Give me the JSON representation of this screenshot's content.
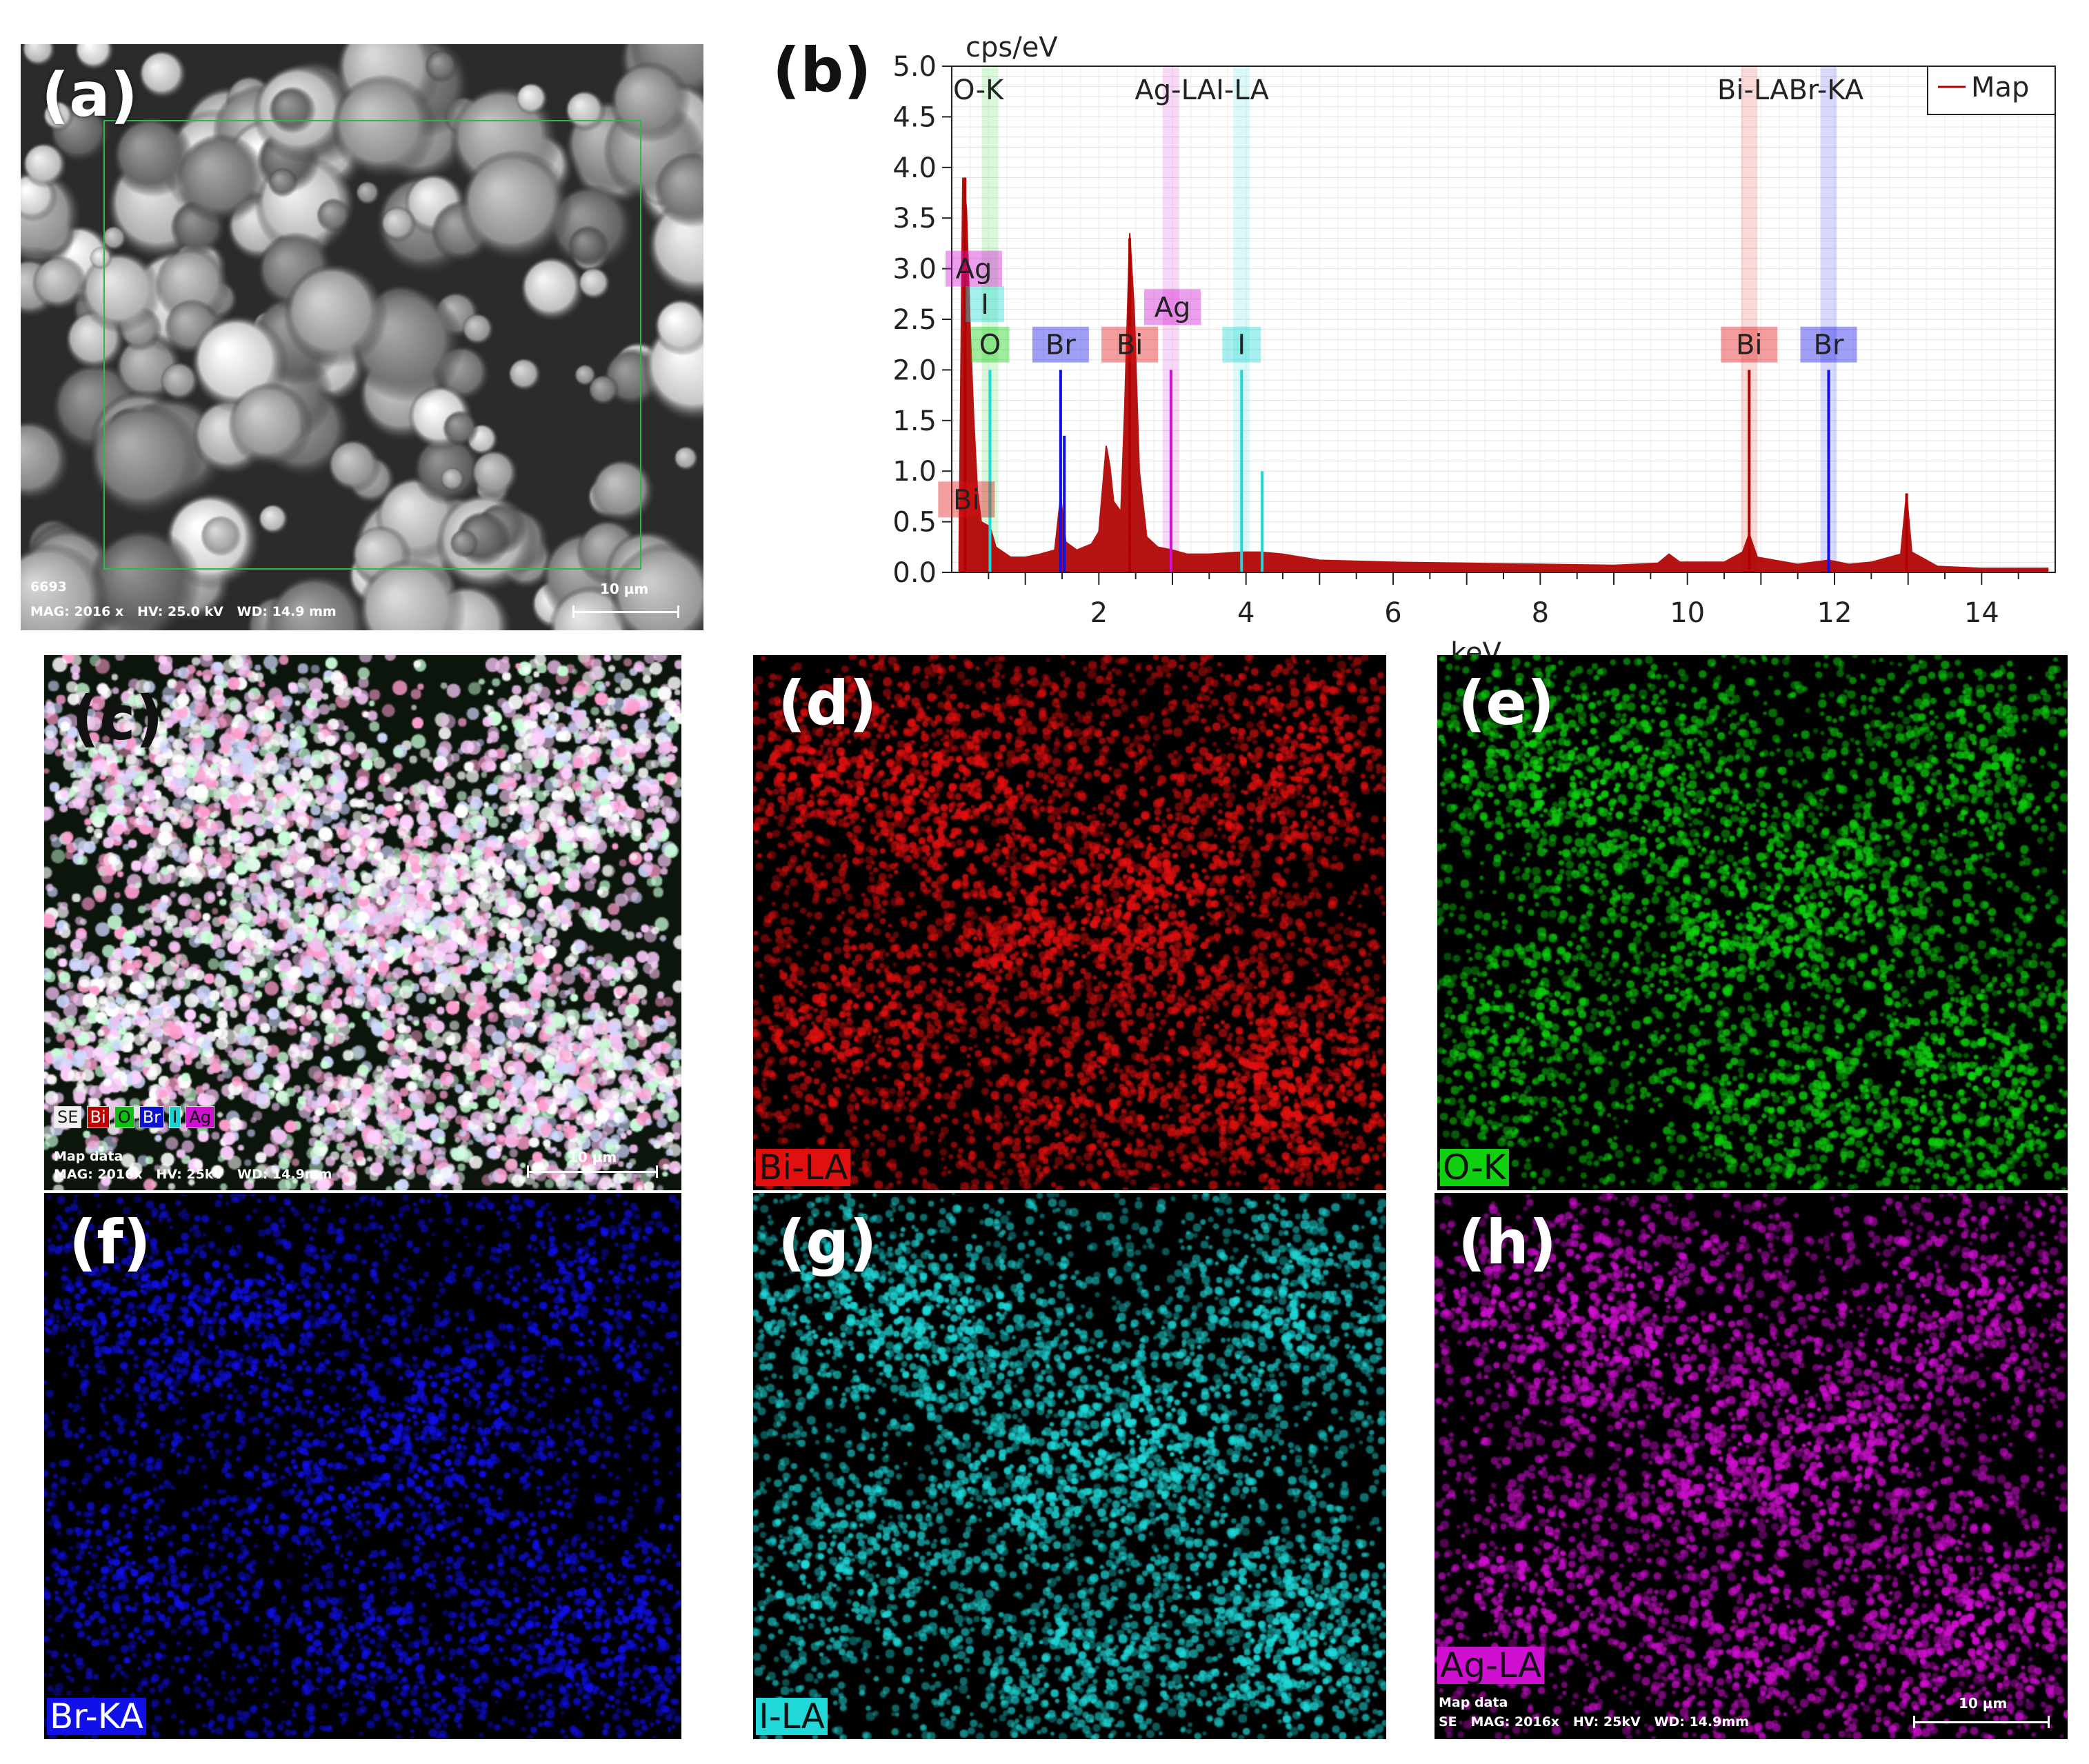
{
  "panel_a": {
    "label": "(a)",
    "meta_line1": "6693",
    "meta_line2": "MAG: 2016 x   HV: 25.0 kV   WD: 14.9 mm",
    "scale": "10 µm"
  },
  "panel_c": {
    "label": "(c)",
    "legend": [
      "SE",
      "Bi",
      "O",
      "Br",
      "I",
      "Ag"
    ],
    "meta_line1": "Map data",
    "meta_line2": "MAG: 2016x   HV: 25kV   WD: 14.9mm",
    "scale": "10 µm"
  },
  "panel_d": {
    "label": "(d)",
    "element": "Bi-LA"
  },
  "panel_e": {
    "label": "(e)",
    "element": "O-K"
  },
  "panel_f": {
    "label": "(f)",
    "element": "Br-KA"
  },
  "panel_g": {
    "label": "(g)",
    "element": "I-LA"
  },
  "panel_h": {
    "label": "(h)",
    "element": "Ag-LA",
    "meta_line1": "Map data",
    "meta_line2": "SE   MAG: 2016x   HV: 25kV   WD: 14.9mm",
    "scale": "10 µm"
  },
  "colors": {
    "Bi": "#e01010",
    "O": "#10d010",
    "Br": "#1010e8",
    "I": "#20d8d8",
    "Ag": "#d010d0",
    "spectrum": "#b00000"
  },
  "chart_data": {
    "panel_label": "(b)",
    "type": "line",
    "xlabel": "keV",
    "ylabel": "cps/eV",
    "xlim": [
      0,
      15
    ],
    "ylim": [
      0,
      5.0
    ],
    "xticks": [
      2,
      4,
      6,
      8,
      10,
      12,
      14
    ],
    "yticks": [
      "0.0",
      "0.5",
      "1.0",
      "1.5",
      "2.0",
      "2.5",
      "3.0",
      "3.5",
      "4.0",
      "4.5",
      "5.0"
    ],
    "legend": "Map",
    "line_markers": [
      {
        "label": "O-K",
        "x": 0.52,
        "color": "#10d010"
      },
      {
        "label": "Ag-LA",
        "x": 2.98,
        "color": "#d010d0"
      },
      {
        "label": "I-LA",
        "x": 3.94,
        "color": "#20d8d8"
      },
      {
        "label": "Bi-LA",
        "x": 10.84,
        "color": "#e01010"
      },
      {
        "label": "Br-KA",
        "x": 11.92,
        "color": "#1010e8"
      }
    ],
    "marker_header_labels": [
      "O-K",
      "Ag-LAI-LA",
      "Bi-LABr-KA"
    ],
    "peak_tags": [
      {
        "text": "Ag",
        "x": 0.3,
        "y": 3.0,
        "color": "#d010d0"
      },
      {
        "text": "I",
        "x": 0.45,
        "y": 2.65,
        "color": "#20d8d8"
      },
      {
        "text": "O",
        "x": 0.52,
        "y": 2.25,
        "color": "#10d010"
      },
      {
        "text": "Br",
        "x": 1.48,
        "y": 2.25,
        "color": "#1010e8"
      },
      {
        "text": "Bi",
        "x": 2.42,
        "y": 2.25,
        "color": "#e01010"
      },
      {
        "text": "Ag",
        "x": 3.0,
        "y": 2.62,
        "color": "#d010d0"
      },
      {
        "text": "I",
        "x": 3.94,
        "y": 2.25,
        "color": "#20d8d8"
      },
      {
        "text": "Bi",
        "x": 10.84,
        "y": 2.25,
        "color": "#e01010"
      },
      {
        "text": "Br",
        "x": 11.92,
        "y": 2.25,
        "color": "#1010e8"
      },
      {
        "text": "Bi",
        "x": 0.2,
        "y": 0.72,
        "color": "#e01010"
      }
    ],
    "spectrum": [
      [
        0.1,
        0.2
      ],
      [
        0.15,
        3.9
      ],
      [
        0.2,
        3.6
      ],
      [
        0.25,
        2.4
      ],
      [
        0.3,
        1.5
      ],
      [
        0.35,
        0.8
      ],
      [
        0.4,
        0.5
      ],
      [
        0.52,
        0.45
      ],
      [
        0.6,
        0.25
      ],
      [
        0.8,
        0.15
      ],
      [
        1.0,
        0.15
      ],
      [
        1.2,
        0.18
      ],
      [
        1.4,
        0.22
      ],
      [
        1.48,
        0.75
      ],
      [
        1.55,
        0.3
      ],
      [
        1.7,
        0.22
      ],
      [
        1.9,
        0.28
      ],
      [
        2.0,
        0.4
      ],
      [
        2.1,
        1.25
      ],
      [
        2.15,
        1.05
      ],
      [
        2.2,
        0.7
      ],
      [
        2.3,
        0.6
      ],
      [
        2.35,
        1.6
      ],
      [
        2.42,
        3.35
      ],
      [
        2.48,
        2.6
      ],
      [
        2.55,
        1.0
      ],
      [
        2.65,
        0.35
      ],
      [
        2.8,
        0.25
      ],
      [
        3.0,
        0.22
      ],
      [
        3.2,
        0.18
      ],
      [
        3.5,
        0.18
      ],
      [
        3.94,
        0.2
      ],
      [
        4.2,
        0.2
      ],
      [
        4.5,
        0.18
      ],
      [
        5.0,
        0.12
      ],
      [
        6.0,
        0.1
      ],
      [
        7.0,
        0.09
      ],
      [
        8.0,
        0.08
      ],
      [
        9.0,
        0.07
      ],
      [
        9.6,
        0.09
      ],
      [
        9.75,
        0.18
      ],
      [
        9.9,
        0.1
      ],
      [
        10.5,
        0.1
      ],
      [
        10.75,
        0.2
      ],
      [
        10.84,
        0.38
      ],
      [
        10.95,
        0.15
      ],
      [
        11.5,
        0.08
      ],
      [
        11.92,
        0.12
      ],
      [
        12.2,
        0.08
      ],
      [
        12.5,
        0.1
      ],
      [
        12.9,
        0.18
      ],
      [
        12.98,
        0.78
      ],
      [
        13.05,
        0.2
      ],
      [
        13.4,
        0.06
      ],
      [
        14.0,
        0.04
      ],
      [
        14.9,
        0.04
      ]
    ],
    "line_bars": [
      {
        "x": 0.18,
        "h": 3.9,
        "color": "#b00000"
      },
      {
        "x": 0.52,
        "h": 2.0,
        "color": "#20d8d8"
      },
      {
        "x": 1.48,
        "h": 2.0,
        "color": "#1010e8"
      },
      {
        "x": 1.53,
        "h": 1.35,
        "color": "#1010e8"
      },
      {
        "x": 2.42,
        "h": 3.3,
        "color": "#b00000"
      },
      {
        "x": 2.98,
        "h": 2.0,
        "color": "#d010d0"
      },
      {
        "x": 3.94,
        "h": 2.0,
        "color": "#20d8d8"
      },
      {
        "x": 4.22,
        "h": 1.0,
        "color": "#20d8d8"
      },
      {
        "x": 10.84,
        "h": 2.0,
        "color": "#b00000"
      },
      {
        "x": 11.92,
        "h": 2.0,
        "color": "#1010e8"
      },
      {
        "x": 12.98,
        "h": 0.78,
        "color": "#b00000"
      }
    ]
  }
}
